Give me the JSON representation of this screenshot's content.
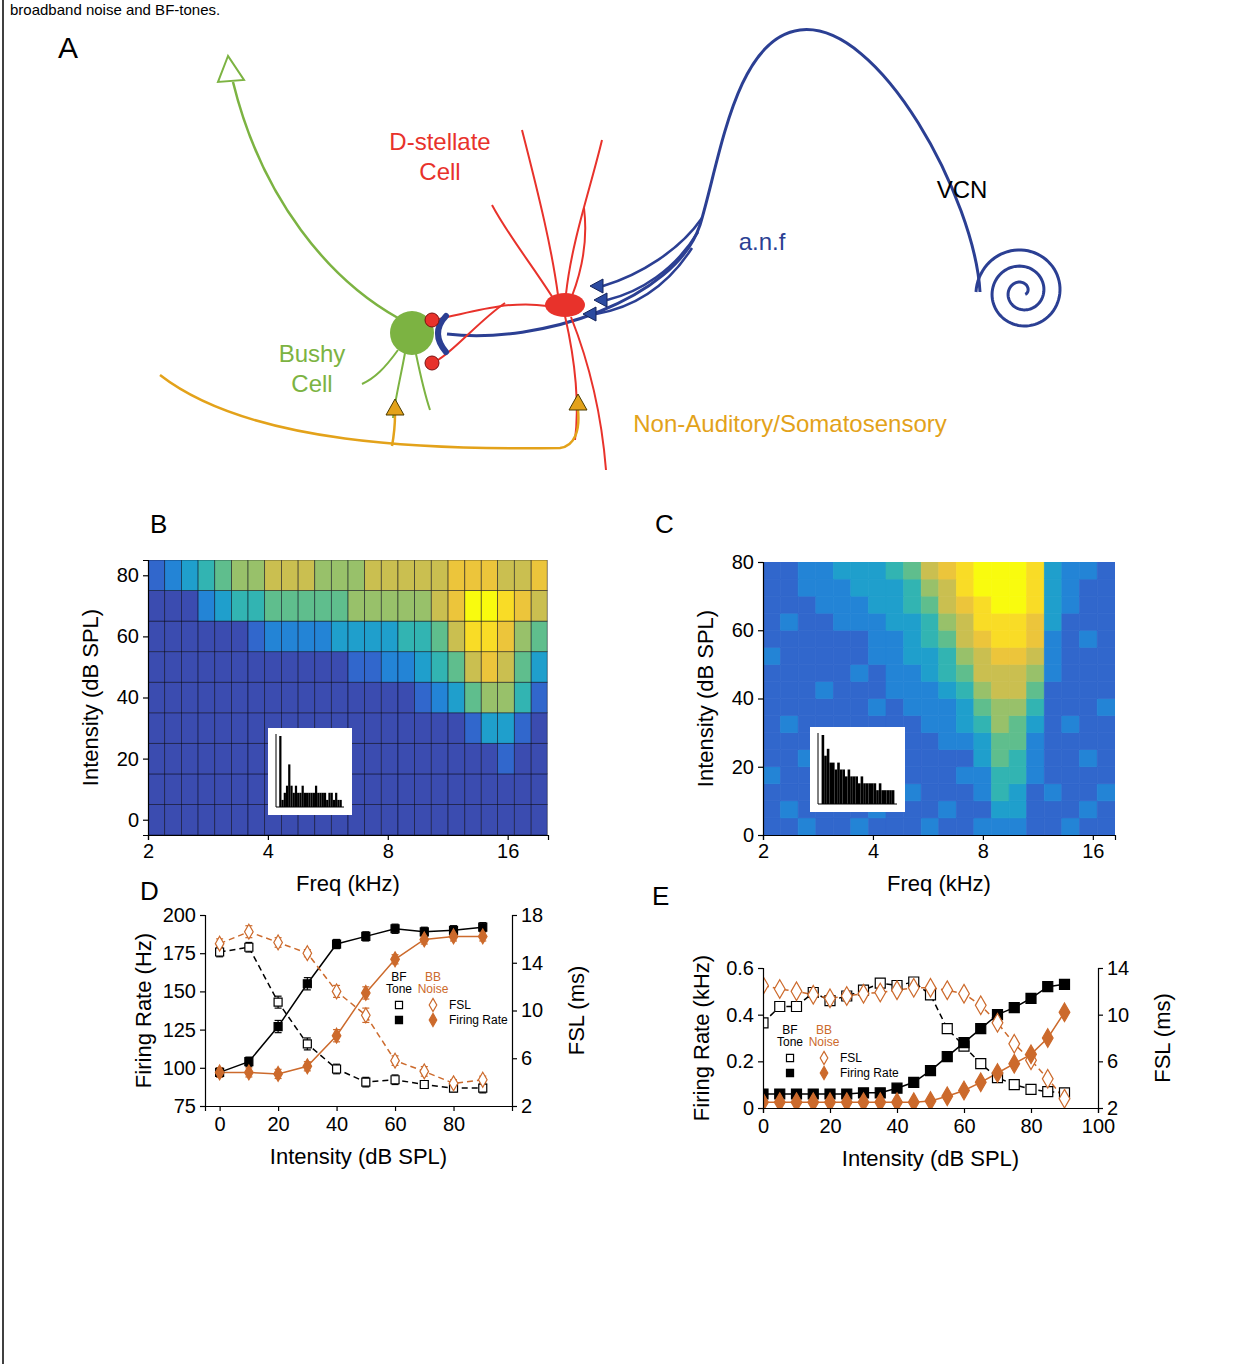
{
  "caption": "broadband noise and BF-tones.",
  "diagram": {
    "panel": "A",
    "labels": {
      "d_stellate": "D-stellate Cell",
      "bushy": "Bushy Cell",
      "region": "VCN",
      "fiber": "a.n.f",
      "somatosensory": "Non-Auditory/Somatosensory"
    }
  },
  "chart_data": [
    {
      "panel": "B",
      "type": "heatmap",
      "x_label": "Freq (kHz)",
      "y_label": "Intensity (dB SPL)",
      "log": "x",
      "grid": true,
      "xlim": [
        2,
        20.2
      ],
      "xticks": [
        2,
        4,
        8,
        16
      ],
      "ylim": [
        -5,
        85
      ],
      "yticks": [
        0,
        20,
        40,
        60,
        80
      ],
      "x": [
        2.1,
        2.31,
        2.55,
        2.8,
        3.09,
        3.4,
        3.74,
        4.12,
        4.54,
        5,
        5.5,
        6.06,
        6.67,
        7.34,
        8.09,
        8.9,
        9.8,
        10.8,
        11.9,
        13.1,
        14.4,
        15.8,
        17.5,
        19.2
      ],
      "y": [
        0,
        10,
        20,
        30,
        40,
        50,
        60,
        70,
        80
      ],
      "zlim": [
        0,
        10
      ],
      "values": [
        [
          0,
          0,
          0,
          0,
          0,
          0,
          0,
          0,
          0,
          0,
          0,
          0,
          0,
          0,
          0,
          0,
          0,
          0,
          0,
          0,
          0,
          0,
          0,
          0
        ],
        [
          0,
          0,
          0,
          0,
          0,
          0,
          0,
          0,
          0,
          0,
          0,
          0,
          0,
          0,
          0,
          0,
          0,
          0,
          0,
          0,
          0,
          0,
          0,
          0
        ],
        [
          0,
          0,
          0,
          0,
          0,
          0,
          0,
          0,
          0,
          0,
          0,
          0,
          0,
          0,
          0,
          0,
          0,
          0,
          0,
          0,
          0,
          1,
          0,
          0
        ],
        [
          0,
          0,
          0,
          0,
          0,
          0,
          0,
          0,
          0,
          0,
          0,
          0,
          0,
          0,
          0,
          0,
          0,
          0,
          0,
          1,
          3,
          3,
          1,
          0
        ],
        [
          0,
          0,
          0,
          0,
          0,
          0,
          0,
          0,
          0,
          0,
          0,
          0,
          0,
          0,
          0,
          0,
          1,
          2,
          3,
          5,
          6,
          6,
          4,
          1
        ],
        [
          0,
          0,
          0,
          0,
          0,
          0,
          0,
          0,
          0,
          0,
          0,
          0,
          1,
          1,
          2,
          2,
          3,
          4,
          5,
          7,
          8,
          7,
          5,
          3
        ],
        [
          0,
          0,
          0,
          0,
          0,
          0,
          1,
          2,
          2,
          2,
          2,
          3,
          3,
          3,
          3,
          4,
          4,
          5,
          7,
          9,
          9,
          8,
          6,
          5
        ],
        [
          0,
          0,
          0,
          2,
          3,
          4,
          4,
          5,
          5,
          5,
          5,
          5,
          6,
          6,
          6,
          6,
          6,
          7,
          8,
          10,
          10,
          9,
          8,
          7
        ],
        [
          1,
          2,
          3,
          4,
          5,
          6,
          6,
          7,
          7,
          7,
          6,
          6,
          6,
          7,
          7,
          7,
          7,
          7,
          8,
          8,
          8,
          7,
          7,
          8
        ]
      ],
      "psth": [
        0,
        10,
        1,
        2,
        3,
        6,
        3,
        2,
        3,
        2,
        2,
        3,
        2,
        2,
        2,
        2,
        2,
        3,
        2,
        2,
        2,
        2,
        1,
        2,
        2,
        1,
        2,
        1,
        1,
        0
      ],
      "psth_ylim": [
        0,
        10
      ]
    },
    {
      "panel": "C",
      "type": "heatmap",
      "x_label": "Freq (kHz)",
      "y_label": "Intensity (dB SPL)",
      "log": "x",
      "grid": false,
      "xlim": [
        2,
        18.4
      ],
      "xticks": [
        2,
        4,
        8,
        16
      ],
      "ylim": [
        0,
        80
      ],
      "yticks": [
        0,
        20,
        40,
        60,
        80
      ],
      "x": [
        2.11,
        2.36,
        2.64,
        2.95,
        3.29,
        3.68,
        4.11,
        4.59,
        5.13,
        5.73,
        6.4,
        7.15,
        7.99,
        8.93,
        9.97,
        11.14,
        12.45,
        13.91,
        15.54,
        17.4
      ],
      "y": [
        2.5,
        7.5,
        12.5,
        17.5,
        22.5,
        27.5,
        32.5,
        37.5,
        42.5,
        47.5,
        52.5,
        57.5,
        62.5,
        67.5,
        72.5,
        77.5
      ],
      "zlim": [
        0,
        10
      ],
      "values": [
        [
          1,
          1,
          2,
          1,
          1,
          2,
          1,
          1,
          1,
          2,
          1,
          1,
          2,
          2,
          2,
          1,
          1,
          2,
          1,
          1
        ],
        [
          1,
          2,
          1,
          1,
          1,
          1,
          2,
          1,
          1,
          1,
          2,
          1,
          1,
          3,
          3,
          1,
          1,
          1,
          2,
          1
        ],
        [
          1,
          1,
          1,
          2,
          1,
          1,
          1,
          1,
          2,
          1,
          1,
          1,
          2,
          4,
          3,
          1,
          2,
          1,
          1,
          2
        ],
        [
          2,
          1,
          1,
          1,
          1,
          2,
          1,
          1,
          1,
          1,
          1,
          2,
          2,
          4,
          4,
          2,
          1,
          1,
          1,
          1
        ],
        [
          1,
          1,
          2,
          1,
          1,
          1,
          1,
          2,
          1,
          1,
          1,
          1,
          3,
          5,
          4,
          2,
          1,
          1,
          2,
          1
        ],
        [
          1,
          1,
          1,
          1,
          2,
          1,
          1,
          1,
          1,
          1,
          2,
          2,
          3,
          5,
          5,
          2,
          1,
          1,
          1,
          1
        ],
        [
          1,
          2,
          1,
          1,
          1,
          1,
          1,
          1,
          1,
          2,
          2,
          3,
          4,
          6,
          5,
          3,
          1,
          2,
          1,
          1
        ],
        [
          1,
          1,
          1,
          1,
          1,
          1,
          2,
          1,
          2,
          2,
          2,
          3,
          5,
          6,
          6,
          4,
          1,
          1,
          1,
          2
        ],
        [
          1,
          1,
          1,
          2,
          1,
          1,
          1,
          2,
          2,
          2,
          3,
          4,
          6,
          7,
          7,
          5,
          1,
          1,
          1,
          1
        ],
        [
          1,
          1,
          1,
          1,
          1,
          2,
          1,
          2,
          2,
          3,
          4,
          5,
          7,
          7,
          7,
          6,
          2,
          1,
          1,
          1
        ],
        [
          2,
          1,
          1,
          1,
          1,
          1,
          2,
          2,
          3,
          3,
          4,
          6,
          7,
          8,
          8,
          7,
          2,
          1,
          1,
          1
        ],
        [
          1,
          1,
          1,
          1,
          1,
          1,
          2,
          2,
          3,
          4,
          5,
          7,
          8,
          9,
          9,
          8,
          2,
          1,
          2,
          1
        ],
        [
          1,
          2,
          1,
          1,
          2,
          2,
          2,
          3,
          3,
          4,
          6,
          7,
          9,
          9,
          9,
          8,
          3,
          1,
          1,
          1
        ],
        [
          1,
          1,
          1,
          2,
          2,
          2,
          3,
          3,
          4,
          5,
          7,
          8,
          9,
          10,
          10,
          9,
          3,
          2,
          1,
          1
        ],
        [
          1,
          1,
          2,
          2,
          2,
          3,
          3,
          3,
          4,
          6,
          7,
          9,
          10,
          10,
          10,
          9,
          3,
          2,
          1,
          1
        ],
        [
          1,
          1,
          2,
          2,
          3,
          3,
          3,
          4,
          5,
          7,
          8,
          9,
          10,
          10,
          10,
          9,
          3,
          2,
          2,
          1
        ]
      ],
      "psth": [
        0,
        10,
        7,
        8,
        6,
        6,
        5,
        6,
        5,
        5,
        4,
        5,
        4,
        4,
        4,
        3,
        4,
        3,
        3,
        3,
        3,
        3,
        2,
        3,
        2,
        2,
        2,
        2,
        2,
        0
      ],
      "psth_ylim": [
        0,
        10
      ]
    },
    {
      "panel": "D",
      "type": "line",
      "x_label": "Intensity (dB SPL)",
      "y_label": "Firing Rate (Hz)",
      "y2_label": "FSL (ms)",
      "legend": "right",
      "xlim": [
        -5,
        100
      ],
      "xticks": [
        0,
        20,
        40,
        60,
        80
      ],
      "ylim": [
        75,
        200
      ],
      "yticks": [
        75,
        100,
        125,
        150,
        175,
        200
      ],
      "y2lim": [
        2,
        18
      ],
      "y2ticks": [
        2,
        6,
        10,
        14,
        18
      ],
      "x": [
        0,
        10,
        20,
        30,
        40,
        50,
        60,
        70,
        80,
        90
      ],
      "series": [
        {
          "name": "FSL",
          "stimulus": "BF Tone",
          "axis": "y2",
          "color": "#000000",
          "marker": "open-square",
          "line_style": "dashed",
          "values": [
            14.9,
            15.3,
            10.7,
            7.2,
            5.1,
            4.0,
            4.2,
            3.8,
            3.5,
            3.5
          ],
          "errors": [
            0.4,
            0.4,
            0.5,
            0.5,
            0.4,
            0.4,
            0.4,
            0.3,
            0.3,
            0.4
          ]
        },
        {
          "name": "Firing Rate",
          "stimulus": "BF Tone",
          "axis": "y",
          "color": "#000000",
          "marker": "square",
          "line_style": "solid",
          "values": [
            97,
            104,
            127,
            155,
            181,
            186,
            191,
            189,
            190,
            192
          ],
          "errors": [
            3,
            3,
            4,
            4,
            3,
            3,
            3,
            3,
            3,
            3
          ]
        },
        {
          "name": "FSL",
          "stimulus": "BB Noise",
          "axis": "y2",
          "color": "#cc6a2c",
          "marker": "open-diamond",
          "line_style": "dashed",
          "values": [
            15.6,
            16.6,
            15.7,
            14.8,
            11.6,
            9.6,
            5.8,
            4.9,
            3.9,
            4.2
          ],
          "errors": [
            0.4,
            0.5,
            0.4,
            0.3,
            0.5,
            0.6,
            0.4,
            0.4,
            0.3,
            0.3
          ]
        },
        {
          "name": "Firing Rate",
          "stimulus": "BB Noise",
          "axis": "y",
          "color": "#cc6a2c",
          "marker": "diamond",
          "line_style": "solid",
          "values": [
            97,
            97,
            96,
            101,
            121,
            149,
            171,
            184,
            186,
            186
          ],
          "errors": [
            3,
            3,
            3,
            3,
            4,
            4,
            3,
            3,
            3,
            3
          ]
        }
      ]
    },
    {
      "panel": "E",
      "type": "line",
      "x_label": "Intensity (dB SPL)",
      "y_label": "Firing Rate (kHz)",
      "y2_label": "FSL (ms)",
      "legend": "left",
      "xlim": [
        0,
        100
      ],
      "xticks": [
        0,
        20,
        40,
        60,
        80,
        100
      ],
      "ylim": [
        0,
        0.6
      ],
      "yticks": [
        0,
        0.2,
        0.4,
        0.6
      ],
      "y2lim": [
        2,
        14
      ],
      "y2ticks": [
        2,
        6,
        10,
        14
      ],
      "x": [
        0,
        5,
        10,
        15,
        20,
        25,
        30,
        35,
        40,
        45,
        50,
        55,
        60,
        65,
        70,
        75,
        80,
        85,
        90
      ],
      "series": [
        {
          "name": "FSL",
          "stimulus": "BF Tone",
          "axis": "y2",
          "color": "#000000",
          "marker": "open-square",
          "line_style": "dashed",
          "values": [
            9.3,
            10.7,
            10.7,
            11.9,
            11.2,
            11.6,
            12.1,
            12.7,
            12.5,
            12.8,
            11.7,
            8.8,
            7.3,
            5.8,
            4.6,
            4.0,
            3.6,
            3.4,
            3.3
          ]
        },
        {
          "name": "Firing Rate",
          "stimulus": "BF Tone",
          "axis": "y",
          "color": "#000000",
          "marker": "square",
          "line_style": "solid",
          "values": [
            0.06,
            0.06,
            0.06,
            0.06,
            0.06,
            0.06,
            0.065,
            0.065,
            0.085,
            0.11,
            0.16,
            0.22,
            0.28,
            0.34,
            0.4,
            0.43,
            0.47,
            0.52,
            0.53
          ]
        },
        {
          "name": "FSL",
          "stimulus": "BB Noise",
          "axis": "y2",
          "color": "#cc6a2c",
          "marker": "open-diamond",
          "line_style": "dashed",
          "values": [
            12.5,
            12.2,
            12.0,
            11.7,
            11.4,
            11.6,
            11.8,
            11.9,
            12.1,
            12.3,
            12.3,
            12.1,
            11.8,
            10.8,
            9.3,
            7.5,
            6.1,
            4.5,
            2.8
          ]
        },
        {
          "name": "Firing Rate",
          "stimulus": "BB Noise",
          "axis": "y",
          "color": "#cc6a2c",
          "marker": "diamond",
          "line_style": "solid",
          "values": [
            0.025,
            0.025,
            0.025,
            0.025,
            0.025,
            0.025,
            0.025,
            0.025,
            0.025,
            0.025,
            0.03,
            0.05,
            0.075,
            0.11,
            0.15,
            0.19,
            0.23,
            0.3,
            0.41
          ]
        }
      ]
    }
  ]
}
